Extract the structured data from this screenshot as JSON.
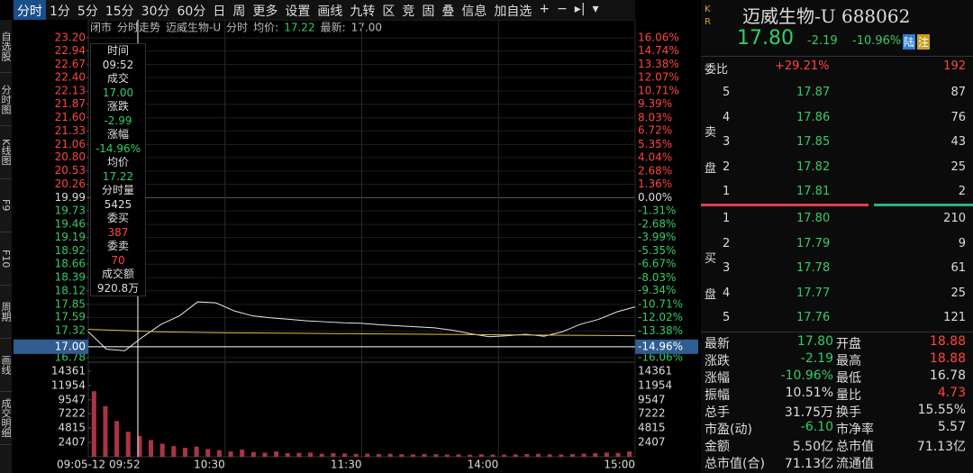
{
  "toolbar": {
    "tabs": [
      "分时",
      "1分",
      "5分",
      "15分",
      "30分",
      "60分",
      "日",
      "周",
      "更多",
      "设置",
      "画线",
      "九转",
      "区",
      "竞",
      "固",
      "叠",
      "信息",
      "加自选",
      "+",
      "−",
      "▸|",
      "▾"
    ]
  },
  "sidebar": [
    "自选股",
    "分时图",
    "K线图",
    "F9",
    "F10",
    "周期",
    "画线",
    "成交明细"
  ],
  "chart_data": {
    "type": "line",
    "header": [
      "闭市",
      "分时走势",
      "迈威生物-U",
      "分时",
      "均价:",
      "17.22",
      "最新:",
      "17.00"
    ],
    "ylim": [
      16.78,
      23.2
    ],
    "yticks": [
      {
        "value": 23.2,
        "label": "23.20"
      },
      22.94,
      22.67,
      {
        "value": 22.4,
        "label": "22.40"
      },
      22.13,
      21.87,
      {
        "value": 21.6,
        "label": "21.60"
      },
      21.33,
      21.06,
      {
        "value": 20.8,
        "label": "20.80"
      },
      20.53,
      20.26,
      19.99,
      19.73,
      19.46,
      19.19,
      18.92,
      18.66,
      18.39,
      18.12,
      17.85,
      17.59,
      17.32,
      16.78
    ],
    "y2lim": [
      -16.06,
      16.06
    ],
    "y2ticks": [
      {
        "value": 16.06,
        "label": "16.06%"
      },
      {
        "value": 14.74,
        "label": "14.74%"
      },
      {
        "value": 13.38,
        "label": "13.38%"
      },
      {
        "value": 12.07,
        "label": "12.07%"
      },
      {
        "value": 10.71,
        "label": "10.71%"
      },
      {
        "value": 9.39,
        "label": "9.39%"
      },
      {
        "value": 8.03,
        "label": "8.03%"
      },
      {
        "value": 6.72,
        "label": "6.72%"
      },
      {
        "value": 5.35,
        "label": "5.35%"
      },
      {
        "value": 4.04,
        "label": "4.04%"
      },
      {
        "value": 2.68,
        "label": "2.68%"
      },
      {
        "value": 1.36,
        "label": "1.36%"
      },
      {
        "value": 0,
        "label": "0.00%"
      },
      {
        "value": -1.31,
        "label": "-1.31%"
      },
      {
        "value": -2.68,
        "label": "-2.68%"
      },
      {
        "value": -3.99,
        "label": "-3.99%"
      },
      {
        "value": -5.35,
        "label": "-5.35%"
      },
      {
        "value": -6.67,
        "label": "-6.67%"
      },
      {
        "value": -8.03,
        "label": "-8.03%"
      },
      {
        "value": -9.34,
        "label": "-9.34%"
      },
      {
        "value": -10.71,
        "label": "-10.71%"
      },
      {
        "value": -12.02,
        "label": "-12.02%"
      },
      {
        "value": -13.38,
        "label": "-13.38%"
      },
      {
        "value": -16.06,
        "label": "-16.06%"
      }
    ],
    "vlim": [
      0,
      15570
    ],
    "vticks": [
      14361,
      11954,
      9547,
      7222,
      4815,
      2407
    ],
    "xlabels": [
      "10:30",
      "11:30",
      "14:00",
      "15:00"
    ],
    "crosshair": {
      "price": {
        "value": 17,
        "label": "17.00"
      },
      "pct": {
        "value": -14.96,
        "label": "-14.96%"
      },
      "time": "09:05-12 09:52"
    },
    "series": [
      {
        "color": "#e8e8e8",
        "values": [
          17.3,
          16.95,
          16.92,
          17.2,
          17.45,
          17.62,
          17.9,
          17.88,
          17.72,
          17.62,
          17.58,
          17.55,
          17.52,
          17.5,
          17.48,
          17.47,
          17.44,
          17.42,
          17.4,
          17.38,
          17.33,
          17.26,
          17.2,
          17.22,
          17.25,
          17.21,
          17.3,
          17.45,
          17.55,
          17.7,
          17.8
        ]
      },
      {
        "color": "#d8c040",
        "values": [
          17.35,
          17.3,
          17.28,
          17.27,
          17.26,
          17.25,
          17.24,
          17.23,
          17.22
        ]
      }
    ],
    "volume": {
      "color": "#a83545",
      "values": [
        11000,
        8500,
        6000,
        4200,
        3500,
        2800,
        2200,
        1800,
        1500,
        1700,
        1300,
        1100,
        900,
        1200,
        800,
        700,
        900,
        600,
        650,
        700,
        500,
        600,
        550,
        480,
        520,
        450,
        500,
        430,
        400,
        450,
        420,
        380,
        400,
        350,
        420,
        380,
        360,
        400,
        450,
        500,
        420,
        380,
        450,
        520,
        600,
        700,
        650,
        900
      ]
    },
    "tooltip": [
      [
        "时间",
        "09:52"
      ],
      [
        "成交",
        "17.00"
      ],
      [
        "涨跌",
        "-2.99"
      ],
      [
        "涨幅",
        "-14.96%"
      ],
      [
        "均价",
        "17.22"
      ],
      [
        "分时量",
        "5425"
      ],
      [
        "委买",
        "387"
      ],
      [
        "委卖",
        "70"
      ],
      [
        "成交额",
        "920.8万"
      ]
    ]
  },
  "quote": {
    "kr": "K R",
    "name": "迈威生物-U 688062",
    "price": "17.80",
    "change": "-2.19",
    "pct": "-10.96%",
    "badges": [
      "陆",
      "注"
    ],
    "ratio_label": "委比",
    "ratio": "+29.21%",
    "ratio_diff": "192",
    "sell_label": "卖盘",
    "buy_label": "买盘",
    "sell": [
      [
        "5",
        "17.87",
        "87"
      ],
      [
        "4",
        "17.86",
        "76"
      ],
      [
        "3",
        "17.85",
        "43"
      ],
      [
        "2",
        "17.82",
        "25"
      ],
      [
        "1",
        "17.81",
        "2"
      ]
    ],
    "buy": [
      [
        "1",
        "17.80",
        "210"
      ],
      [
        "2",
        "17.79",
        "9"
      ],
      [
        "3",
        "17.78",
        "61"
      ],
      [
        "4",
        "17.77",
        "25"
      ],
      [
        "5",
        "17.76",
        "121"
      ]
    ],
    "stats": [
      [
        "最新",
        "17.80",
        "开盘",
        "18.88"
      ],
      [
        "涨跌",
        "-2.19",
        "最高",
        "18.88"
      ],
      [
        "涨幅",
        "-10.96%",
        "最低",
        "16.78"
      ],
      [
        "振幅",
        "10.51%",
        "量比",
        "4.73"
      ],
      [
        "总手",
        "31.75万",
        "换手",
        "15.55%"
      ],
      [
        "市盈(动)",
        "-6.10",
        "市净率",
        "5.57"
      ],
      [
        "金额",
        "5.50亿",
        "总市值",
        "71.13亿"
      ],
      [
        "总市值(合)",
        "71.13亿",
        "流通值",
        ""
      ]
    ]
  }
}
